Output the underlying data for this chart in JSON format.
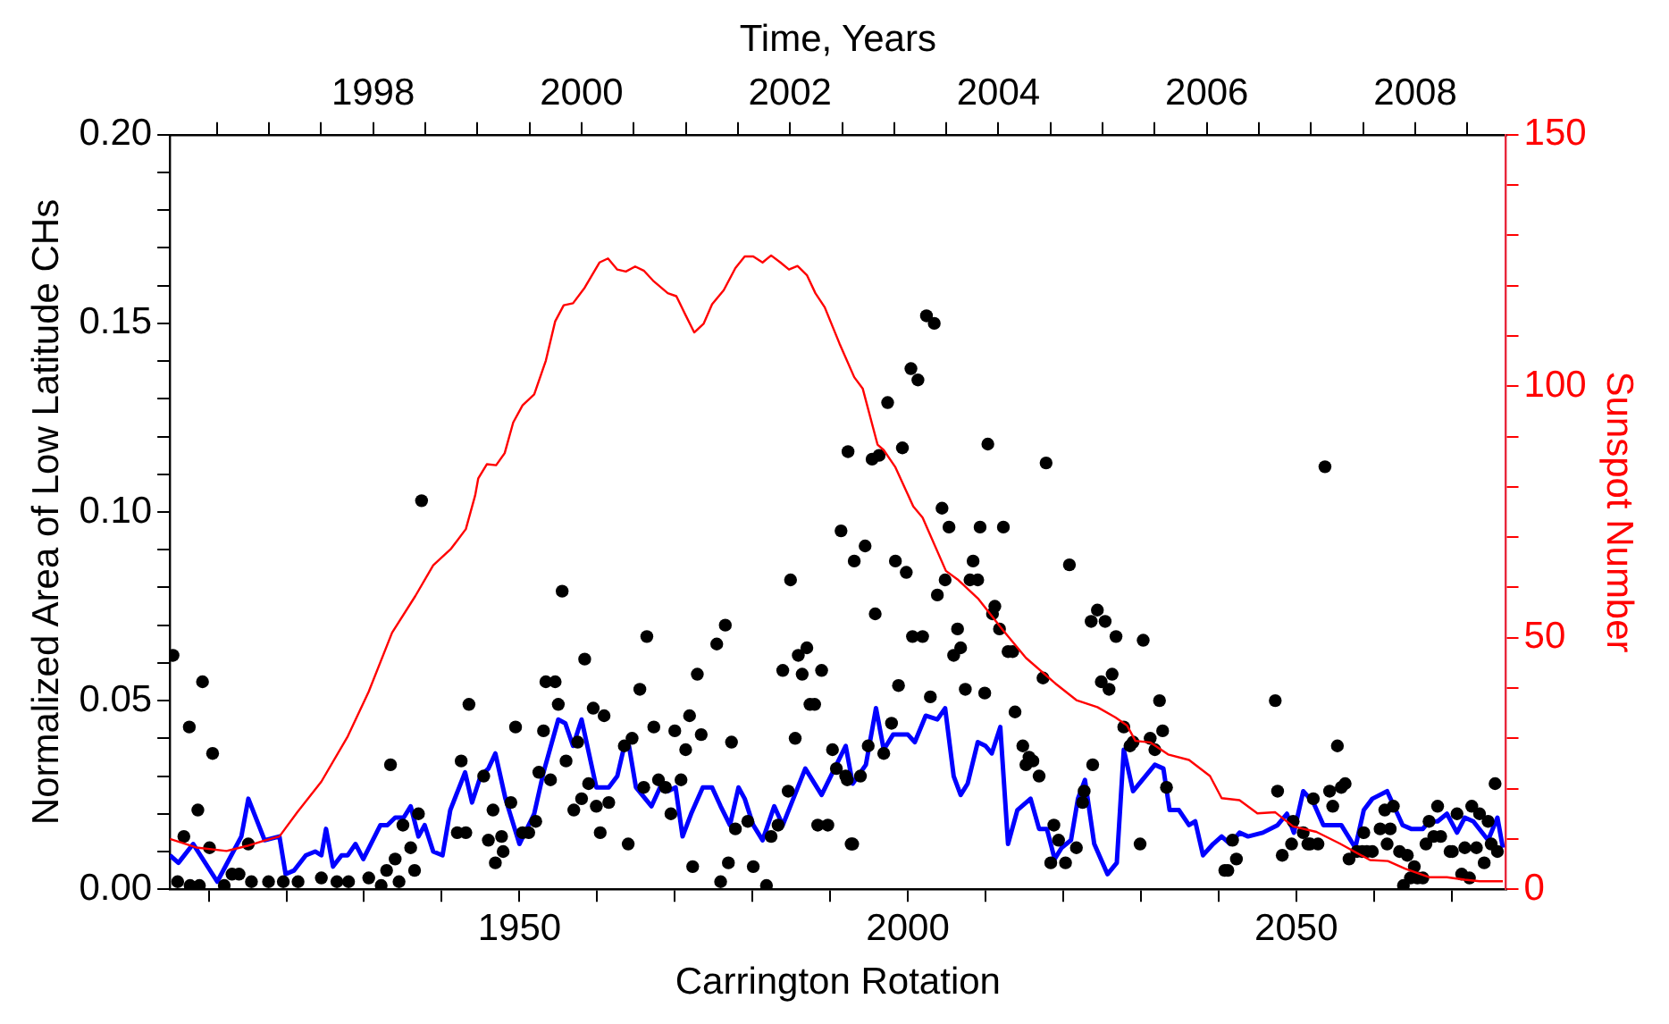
{
  "chart_data": {
    "type": "scatter",
    "xlabel": "Carrington Rotation",
    "x2label": "Time, Years",
    "ylabel": "Normalized Area of Low Latitude CHs",
    "y2label": "Sunspot Number",
    "xlim": [
      1905,
      2077
    ],
    "x2lim": [
      1996.05,
      2008.87
    ],
    "ylim": [
      0,
      0.2
    ],
    "y2lim": [
      0,
      150
    ],
    "xticks": [
      {
        "value": 1910,
        "label": null
      },
      {
        "value": 1920,
        "label": null
      },
      {
        "value": 1930,
        "label": null
      },
      {
        "value": 1940,
        "label": null
      },
      1950,
      {
        "value": 1960,
        "label": null
      },
      {
        "value": 1970,
        "label": null
      },
      {
        "value": 1980,
        "label": null
      },
      {
        "value": 1990,
        "label": null
      },
      2000,
      {
        "value": 2010,
        "label": null
      },
      {
        "value": 2020,
        "label": null
      },
      {
        "value": 2030,
        "label": null
      },
      {
        "value": 2040,
        "label": null
      },
      2050,
      {
        "value": 2060,
        "label": null
      },
      {
        "value": 2070,
        "label": null
      }
    ],
    "x2ticks": [
      {
        "value": 1996.5,
        "label": null
      },
      {
        "value": 1997,
        "label": null
      },
      {
        "value": 1997.5,
        "label": null
      },
      1998,
      {
        "value": 1998.5,
        "label": null
      },
      {
        "value": 1999,
        "label": null
      },
      {
        "value": 1999.5,
        "label": null
      },
      2000,
      {
        "value": 2000.5,
        "label": null
      },
      {
        "value": 2001,
        "label": null
      },
      {
        "value": 2001.5,
        "label": null
      },
      2002,
      {
        "value": 2002.5,
        "label": null
      },
      {
        "value": 2003,
        "label": null
      },
      {
        "value": 2003.5,
        "label": null
      },
      2004,
      {
        "value": 2004.5,
        "label": null
      },
      {
        "value": 2005,
        "label": null
      },
      {
        "value": 2005.5,
        "label": null
      },
      2006,
      {
        "value": 2006.5,
        "label": null
      },
      {
        "value": 2007,
        "label": null
      },
      {
        "value": 2007.5,
        "label": null
      },
      2008,
      {
        "value": 2008.5,
        "label": null
      }
    ],
    "yticks": [
      {
        "value": 0,
        "label": "0.00"
      },
      {
        "value": 0.01,
        "label": null
      },
      {
        "value": 0.02,
        "label": null
      },
      {
        "value": 0.03,
        "label": null
      },
      {
        "value": 0.04,
        "label": null
      },
      {
        "value": 0.05,
        "label": "0.05"
      },
      {
        "value": 0.06,
        "label": null
      },
      {
        "value": 0.07,
        "label": null
      },
      {
        "value": 0.08,
        "label": null
      },
      {
        "value": 0.09,
        "label": null
      },
      {
        "value": 0.1,
        "label": "0.10"
      },
      {
        "value": 0.11,
        "label": null
      },
      {
        "value": 0.12,
        "label": null
      },
      {
        "value": 0.13,
        "label": null
      },
      {
        "value": 0.14,
        "label": null
      },
      {
        "value": 0.15,
        "label": "0.15"
      },
      {
        "value": 0.16,
        "label": null
      },
      {
        "value": 0.17,
        "label": null
      },
      {
        "value": 0.18,
        "label": null
      },
      {
        "value": 0.19,
        "label": null
      },
      {
        "value": 0.2,
        "label": "0.20"
      }
    ],
    "y2ticks": [
      0,
      {
        "value": 10,
        "label": null
      },
      {
        "value": 20,
        "label": null
      },
      {
        "value": 30,
        "label": null
      },
      {
        "value": 40,
        "label": null
      },
      50,
      {
        "value": 60,
        "label": null
      },
      {
        "value": 70,
        "label": null
      },
      {
        "value": 80,
        "label": null
      },
      {
        "value": 90,
        "label": null
      },
      100,
      {
        "value": 110,
        "label": null
      },
      {
        "value": 120,
        "label": null
      },
      {
        "value": 130,
        "label": null
      },
      {
        "value": 140,
        "label": null
      },
      150
    ],
    "series": [
      {
        "type": "line",
        "color": "#ff0000",
        "axis": "y2",
        "marker": "none",
        "x": [
          1905,
          1908.4,
          1912.3,
          1914.9,
          1917.2,
          1919.1,
          1921.4,
          1924.5,
          1927.9,
          1930.6,
          1933.6,
          1936.6,
          1938.9,
          1941.2,
          1943.1,
          1944.3,
          1944.7,
          1945.8,
          1947,
          1948.1,
          1949.2,
          1950.4,
          1951.9,
          1953.4,
          1954.6,
          1955.7,
          1956.9,
          1958.4,
          1960.3,
          1961.4,
          1962.6,
          1963.7,
          1964.9,
          1966,
          1967.2,
          1969.1,
          1970.2,
          1971.4,
          1972.5,
          1973.7,
          1974.8,
          1976.3,
          1977.8,
          1979,
          1980.1,
          1981.3,
          1982.4,
          1983.6,
          1984.7,
          1985.8,
          1987,
          1988.1,
          1989.3,
          1991.2,
          1993.1,
          1994.2,
          1996.1,
          1996.9,
          1998.4,
          2000.7,
          2001.9,
          2004.9,
          2006.4,
          2009.1,
          2012.2,
          2015.2,
          2019,
          2021.7,
          2024.4,
          2026.7,
          2028.2,
          2029.3,
          2031.2,
          2033.5,
          2036.2,
          2038.9,
          2040.4,
          2042.7,
          2045,
          2047.3,
          2049.6,
          2052.6,
          2055.6,
          2059.5,
          2061.8,
          2064,
          2067.1,
          2069.4,
          2071.7,
          2073.6,
          2076.6
        ],
        "values": [
          10,
          8.3,
          7.6,
          8.6,
          9.7,
          10.5,
          15.3,
          21.4,
          30.4,
          39.3,
          51,
          58.3,
          64.4,
          67.7,
          71.6,
          78.3,
          81.7,
          84.5,
          84.3,
          86.7,
          92.8,
          96.2,
          98.4,
          105.1,
          112.9,
          116.1,
          116.5,
          119.6,
          124.6,
          125.4,
          123.2,
          122.8,
          123.8,
          123,
          121,
          118.5,
          117.9,
          114.1,
          110.7,
          112.4,
          116.3,
          119.1,
          123.5,
          125.8,
          125.8,
          124.6,
          126,
          124.6,
          123.2,
          123.9,
          122.1,
          118.5,
          115.7,
          108.5,
          101.8,
          99.5,
          88.4,
          87.3,
          83.9,
          76.1,
          73.9,
          63.3,
          61.6,
          57.7,
          51.6,
          46,
          40.9,
          37.6,
          36.2,
          34.2,
          32.6,
          29.5,
          29.2,
          26.8,
          25.7,
          22.5,
          18.1,
          17.7,
          15.1,
          15.3,
          12.5,
          11.4,
          9.1,
          5.8,
          5.6,
          4.1,
          2.4,
          2.4,
          1.9,
          1.6,
          1.6
        ]
      },
      {
        "color": "#000000",
        "marker": "circle",
        "x": [
          1905.4,
          1909.2,
          1907.5,
          1910.5,
          1908.6,
          1906.8,
          1910.1,
          1906,
          1907.6,
          1908.8,
          1913,
          1913.9,
          1915.1,
          1915.5,
          1917.7,
          1919.6,
          1921.5,
          1924.5,
          1926.5,
          1928,
          1930.6,
          1932.2,
          1912,
          1937.4,
          1933.4,
          1932.9,
          1934,
          1935,
          1936,
          1937,
          1936.5,
          1934.5,
          1942.5,
          1943.5,
          1942,
          1943.1,
          1945.4,
          1946.6,
          1947.7,
          1946,
          1946.9,
          1947.9,
          1948.9,
          1949.5,
          1950.4,
          1951.2,
          1952.1,
          1952.5,
          1953.1,
          1953.4,
          1954.6,
          1954,
          1955,
          1955.5,
          1956,
          1957,
          1957.5,
          1958,
          1958.4,
          1958.9,
          1959.5,
          1959.9,
          1960.4,
          1960.9,
          1961.5,
          1964,
          1963.5,
          1964.5,
          1965.5,
          1966,
          1966.4,
          1967.3,
          1967.9,
          1968.8,
          1969.5,
          1970,
          1970.8,
          1971.4,
          1971.9,
          1972.3,
          1972.9,
          1973.4,
          1975.9,
          1975.4,
          1976.5,
          1976.9,
          1977.3,
          1977.8,
          1979.4,
          1980.1,
          1981.8,
          1982.4,
          1983.3,
          1983.9,
          1984.6,
          1984.9,
          1985.5,
          1985.9,
          1986.4,
          1987,
          1987.4,
          1988,
          1988.4,
          1989.7,
          1988.9,
          1990.3,
          1990.8,
          1991.4,
          1992.2,
          1992.7,
          1993.1,
          1992.3,
          2002.4,
          2003.4,
          2000.4,
          2001.3,
          1997.4,
          1995.4,
          1996.3,
          1999.3,
          2010.3,
          2017.8,
          2053.7,
          2004.4,
          2005.3,
          2009.3,
          2012.3,
          1994.5,
          1998.4,
          1999.8,
          2008.4,
          2008,
          2009,
          2020.8,
          2004.8,
          2003.8,
          1995.8,
          2010.9,
          2011.2,
          2000.6,
          2001.9,
          2006.4,
          2011.8,
          2005.9,
          2006.8,
          2012.9,
          2013.5,
          2017.4,
          2023.6,
          2024.4,
          2025.4,
          2026.8,
          2030.3,
          2024.9,
          2025.9,
          2026.3,
          2032.4,
          1998.8,
          2002.9,
          2007.4,
          2009.9,
          2013.8,
          1997.9,
          1996.9,
          1994.9,
          1993.9,
          1992,
          1992.9,
          2014.8,
          2015.6,
          2016.1,
          2015.2,
          2016.9,
          2023.8,
          2027.8,
          2028.6,
          2029,
          2031.2,
          2031.8,
          2032.8,
          2033.3,
          2022.7,
          2022.5,
          2018.8,
          2019.4,
          2018.4,
          2020.3,
          2021.7,
          2029.9,
          2040.8,
          2041.2,
          2041.8,
          2042.3,
          2047.3,
          2047.6,
          2048.2,
          2049.4,
          2049.6,
          2050.9,
          2051.5,
          2051.8,
          2052.8,
          2052.2,
          2054.3,
          2054.7,
          2055.3,
          2055.8,
          2056.3,
          2056.8,
          2057.8,
          2058.5,
          2059.1,
          2059.8,
          2058.7,
          2060.8,
          2062.1,
          2061.4,
          2061.7,
          2062.5,
          2063.3,
          2064.3,
          2063.8,
          2065.2,
          2064.7,
          2065.6,
          2066.3,
          2066.7,
          2067.1,
          2067.7,
          2068.6,
          2068.2,
          2069.8,
          2070.1,
          2070.7,
          2071.3,
          2072.3,
          2071.7,
          2073.2,
          2072.6,
          2073.6,
          2074.2,
          2074.7,
          2075.1,
          2075.9,
          2075.6
        ],
        "values": [
          0.062,
          0.055,
          0.043,
          0.036,
          0.021,
          0.014,
          0.011,
          0.002,
          0.001,
          0.001,
          0.004,
          0.004,
          0.012,
          0.002,
          0.002,
          0.002,
          0.002,
          0.003,
          0.002,
          0.002,
          0.003,
          0.001,
          0.001,
          0.103,
          0.033,
          0.005,
          0.008,
          0.017,
          0.011,
          0.02,
          0.005,
          0.002,
          0.034,
          0.049,
          0.015,
          0.015,
          0.03,
          0.021,
          0.014,
          0.013,
          0.007,
          0.01,
          0.023,
          0.043,
          0.015,
          0.015,
          0.018,
          0.031,
          0.042,
          0.055,
          0.055,
          0.029,
          0.049,
          0.079,
          0.034,
          0.021,
          0.039,
          0.024,
          0.061,
          0.028,
          0.048,
          0.022,
          0.015,
          0.046,
          0.023,
          0.012,
          0.038,
          0.04,
          0.053,
          0.027,
          0.067,
          0.043,
          0.029,
          0.027,
          0.02,
          0.042,
          0.029,
          0.037,
          0.046,
          0.006,
          0.057,
          0.041,
          0.002,
          0.065,
          0.07,
          0.007,
          0.039,
          0.016,
          0.018,
          0.006,
          0.001,
          0.014,
          0.017,
          0.058,
          0.026,
          0.082,
          0.04,
          0.062,
          0.057,
          0.064,
          0.049,
          0.049,
          0.017,
          0.017,
          0.058,
          0.037,
          0.032,
          0.095,
          0.029,
          0.012,
          0.087,
          0.116,
          0.152,
          0.15,
          0.138,
          0.135,
          0.129,
          0.114,
          0.115,
          0.117,
          0.118,
          0.113,
          0.112,
          0.101,
          0.096,
          0.096,
          0.096,
          0.091,
          0.087,
          0.084,
          0.087,
          0.082,
          0.082,
          0.086,
          0.082,
          0.078,
          0.073,
          0.073,
          0.075,
          0.067,
          0.067,
          0.069,
          0.069,
          0.062,
          0.064,
          0.063,
          0.063,
          0.056,
          0.071,
          0.074,
          0.071,
          0.067,
          0.066,
          0.055,
          0.053,
          0.057,
          0.05,
          0.054,
          0.051,
          0.053,
          0.052,
          0.047,
          0.044,
          0.036,
          0.038,
          0.03,
          0.03,
          0.012,
          0.038,
          0.035,
          0.034,
          0.033,
          0.03,
          0.033,
          0.043,
          0.038,
          0.039,
          0.04,
          0.037,
          0.042,
          0.027,
          0.026,
          0.023,
          0.017,
          0.013,
          0.007,
          0.007,
          0.011,
          0.012,
          0.005,
          0.005,
          0.013,
          0.008,
          0.05,
          0.026,
          0.009,
          0.012,
          0.018,
          0.015,
          0.012,
          0.012,
          0.012,
          0.024,
          0.026,
          0.022,
          0.038,
          0.027,
          0.028,
          0.008,
          0.01,
          0.01,
          0.01,
          0.01,
          0.015,
          0.016,
          0.016,
          0.021,
          0.012,
          0.022,
          0.01,
          0.009,
          0.001,
          0.006,
          0.003,
          0.003,
          0.003,
          0.012,
          0.018,
          0.014,
          0.014,
          0.022,
          0.01,
          0.01,
          0.02,
          0.004,
          0.003,
          0.011,
          0.011,
          0.022,
          0.02,
          0.007,
          0.018,
          0.012,
          0.01,
          0.028
        ]
      },
      {
        "type": "line",
        "color": "#0000ff",
        "marker": "none",
        "x": [
          1905,
          1906.1,
          1908,
          1911.1,
          1914.2,
          1915.1,
          1917.2,
          1919.1,
          1919.9,
          1921,
          1922.5,
          1923.7,
          1924.5,
          1925.1,
          1926,
          1927.1,
          1927.9,
          1928.9,
          1929.9,
          1932.1,
          1933,
          1934,
          1935.1,
          1936,
          1937,
          1937.8,
          1938.9,
          1940.1,
          1941.1,
          1943,
          1943.9,
          1945,
          1946,
          1946.9,
          1948.2,
          1950,
          1951.9,
          1953.1,
          1955,
          1955.9,
          1956.9,
          1958,
          1959.9,
          1961.5,
          1962.6,
          1963.5,
          1964.1,
          1965,
          1967,
          1968.1,
          1969.1,
          1970.1,
          1971,
          1972.1,
          1973.6,
          1974.8,
          1975.9,
          1977.1,
          1978.2,
          1979,
          1980.1,
          1981.3,
          1982.8,
          1983.9,
          1986.8,
          1988.9,
          1992,
          1992.9,
          1994.6,
          1995.9,
          1996.9,
          1998.1,
          2000,
          2000.9,
          2002.3,
          2003.8,
          2004.8,
          2005.9,
          2006.8,
          2007.7,
          2009,
          2010,
          2010.8,
          2011.9,
          2012.9,
          2014.1,
          2015.8,
          2016.9,
          2017.9,
          2018.9,
          2019.8,
          2021,
          2021.9,
          2022.8,
          2024,
          2025.7,
          2026.9,
          2027.8,
          2029,
          2031.8,
          2032.9,
          2033.7,
          2034.9,
          2036.2,
          2037,
          2038,
          2039.3,
          2040.4,
          2041.5,
          2042.7,
          2043.8,
          2045.7,
          2047.6,
          2048.8,
          2049.7,
          2050.9,
          2052.2,
          2053.5,
          2054.7,
          2055.8,
          2057.6,
          2058.7,
          2059.8,
          2061.7,
          2063.7,
          2064.8,
          2066.3,
          2067.1,
          2068.2,
          2069.4,
          2070.7,
          2071.7,
          2072.8,
          2074.7,
          2075.9,
          2076.6
        ],
        "values": [
          0.009,
          0.007,
          0.012,
          0.002,
          0.014,
          0.024,
          0.013,
          0.014,
          0.004,
          0.005,
          0.009,
          0.01,
          0.009,
          0.016,
          0.006,
          0.009,
          0.009,
          0.012,
          0.008,
          0.017,
          0.017,
          0.019,
          0.019,
          0.022,
          0.014,
          0.017,
          0.01,
          0.009,
          0.021,
          0.031,
          0.023,
          0.03,
          0.032,
          0.036,
          0.024,
          0.012,
          0.02,
          0.031,
          0.045,
          0.044,
          0.038,
          0.045,
          0.027,
          0.027,
          0.03,
          0.038,
          0.038,
          0.027,
          0.022,
          0.027,
          0.026,
          0.027,
          0.014,
          0.02,
          0.027,
          0.027,
          0.022,
          0.017,
          0.027,
          0.024,
          0.017,
          0.013,
          0.022,
          0.017,
          0.032,
          0.025,
          0.038,
          0.028,
          0.033,
          0.048,
          0.037,
          0.041,
          0.041,
          0.039,
          0.046,
          0.045,
          0.048,
          0.03,
          0.025,
          0.028,
          0.039,
          0.038,
          0.036,
          0.043,
          0.012,
          0.021,
          0.024,
          0.016,
          0.016,
          0.008,
          0.011,
          0.013,
          0.024,
          0.029,
          0.012,
          0.004,
          0.007,
          0.037,
          0.026,
          0.033,
          0.032,
          0.021,
          0.021,
          0.017,
          0.018,
          0.009,
          0.012,
          0.014,
          0.012,
          0.015,
          0.014,
          0.015,
          0.017,
          0.02,
          0.015,
          0.026,
          0.023,
          0.017,
          0.017,
          0.017,
          0.011,
          0.021,
          0.024,
          0.026,
          0.017,
          0.016,
          0.016,
          0.018,
          0.018,
          0.02,
          0.015,
          0.019,
          0.018,
          0.013,
          0.019,
          0.011
        ]
      }
    ]
  }
}
